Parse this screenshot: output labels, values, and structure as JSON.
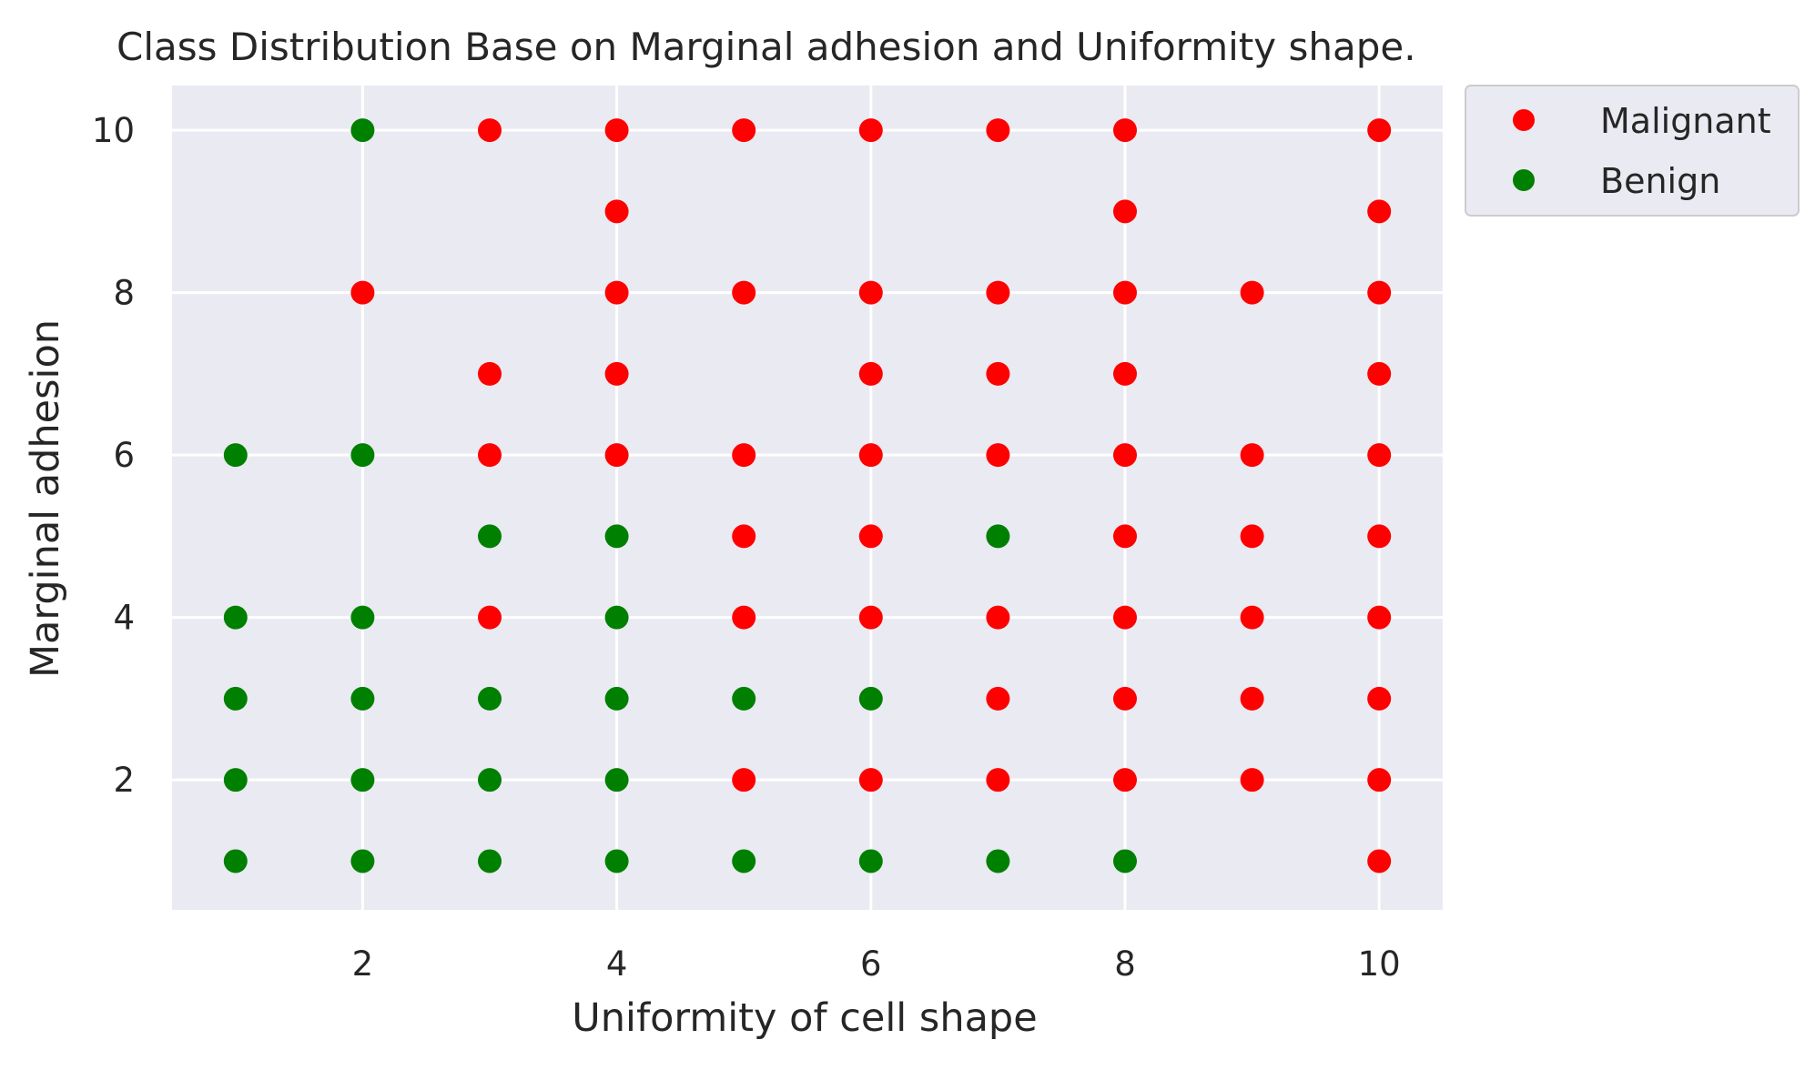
{
  "chart_data": {
    "type": "scatter",
    "title": "Class Distribution Base on Marginal adhesion and Uniformity shape.",
    "xlabel": "Uniformity of cell shape",
    "ylabel": "Marginal adhesion",
    "xlim": [
      0.5,
      10.5
    ],
    "ylim": [
      0.4,
      10.55
    ],
    "xticks": [
      2,
      4,
      6,
      8,
      10
    ],
    "yticks": [
      2,
      4,
      6,
      8,
      10
    ],
    "grid": true,
    "legend_position": "outside-top-right",
    "background": "#eaeaf2",
    "series": [
      {
        "name": "Malignant",
        "color": "#ff0000",
        "points": [
          [
            3,
            10
          ],
          [
            4,
            10
          ],
          [
            5,
            10
          ],
          [
            6,
            10
          ],
          [
            7,
            10
          ],
          [
            8,
            10
          ],
          [
            10,
            10
          ],
          [
            4,
            9
          ],
          [
            8,
            9
          ],
          [
            10,
            9
          ],
          [
            2,
            8
          ],
          [
            4,
            8
          ],
          [
            5,
            8
          ],
          [
            6,
            8
          ],
          [
            7,
            8
          ],
          [
            8,
            8
          ],
          [
            9,
            8
          ],
          [
            10,
            8
          ],
          [
            3,
            7
          ],
          [
            4,
            7
          ],
          [
            6,
            7
          ],
          [
            7,
            7
          ],
          [
            8,
            7
          ],
          [
            10,
            7
          ],
          [
            3,
            6
          ],
          [
            4,
            6
          ],
          [
            5,
            6
          ],
          [
            6,
            6
          ],
          [
            7,
            6
          ],
          [
            8,
            6
          ],
          [
            9,
            6
          ],
          [
            10,
            6
          ],
          [
            5,
            5
          ],
          [
            6,
            5
          ],
          [
            8,
            5
          ],
          [
            9,
            5
          ],
          [
            10,
            5
          ],
          [
            3,
            4
          ],
          [
            5,
            4
          ],
          [
            6,
            4
          ],
          [
            7,
            4
          ],
          [
            8,
            4
          ],
          [
            9,
            4
          ],
          [
            10,
            4
          ],
          [
            7,
            3
          ],
          [
            8,
            3
          ],
          [
            9,
            3
          ],
          [
            10,
            3
          ],
          [
            5,
            2
          ],
          [
            6,
            2
          ],
          [
            7,
            2
          ],
          [
            8,
            2
          ],
          [
            9,
            2
          ],
          [
            10,
            2
          ],
          [
            10,
            1
          ]
        ]
      },
      {
        "name": "Benign",
        "color": "#008000",
        "points": [
          [
            2,
            10
          ],
          [
            1,
            6
          ],
          [
            2,
            6
          ],
          [
            3,
            5
          ],
          [
            4,
            5
          ],
          [
            7,
            5
          ],
          [
            1,
            4
          ],
          [
            2,
            4
          ],
          [
            4,
            4
          ],
          [
            1,
            3
          ],
          [
            2,
            3
          ],
          [
            3,
            3
          ],
          [
            4,
            3
          ],
          [
            5,
            3
          ],
          [
            6,
            3
          ],
          [
            1,
            2
          ],
          [
            2,
            2
          ],
          [
            3,
            2
          ],
          [
            4,
            2
          ],
          [
            1,
            1
          ],
          [
            2,
            1
          ],
          [
            3,
            1
          ],
          [
            4,
            1
          ],
          [
            5,
            1
          ],
          [
            6,
            1
          ],
          [
            7,
            1
          ],
          [
            8,
            1
          ]
        ]
      }
    ]
  }
}
